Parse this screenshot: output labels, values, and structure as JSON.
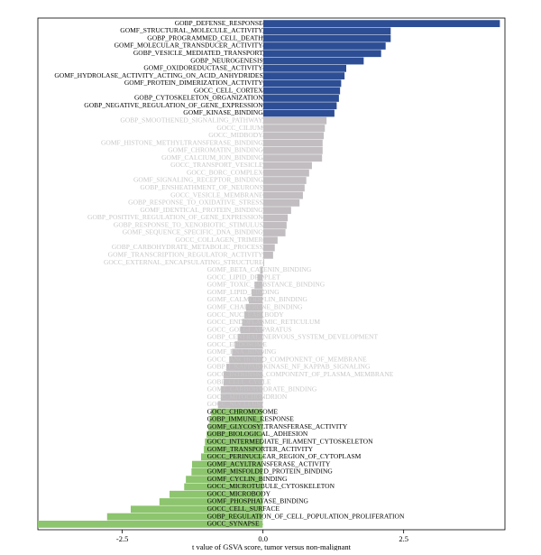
{
  "chart_data": {
    "type": "barh",
    "xlabel": "t value of GSVA score, tumor versus non-malignant",
    "categories": [
      "GOBP_DEFENSE_RESPONSE",
      "GOMF_STRUCTURAL_MOLECULE_ACTIVITY",
      "GOBP_PROGRAMMED_CELL_DEATH",
      "GOMF_MOLECULAR_TRANSDUCER_ACTIVITY",
      "GOBP_VESICLE_MEDIATED_TRANSPORT",
      "GOBP_NEUROGENESIS",
      "GOMF_OXIDOREDUCTASE_ACTIVITY",
      "GOMF_HYDROLASE_ACTIVITY_ACTING_ON_ACID_ANHYDRIDES",
      "GOMF_PROTEIN_DIMERIZATION_ACTIVITY",
      "GOCC_CELL_CORTEX",
      "GOBP_CYTOSKELETON_ORGANIZATION",
      "GOBP_NEGATIVE_REGULATION_OF_GENE_EXPRESSION",
      "GOMF_KINASE_BINDING",
      "GOBP_SMOOTHENED_SIGNALING_PATHWAY",
      "GOCC_CILIUM",
      "GOCC_MIDBODY",
      "GOMF_HISTONE_METHYLTRANSFERASE_BINDING",
      "GOMF_CHROMATIN_BINDING",
      "GOMF_CALCIUM_ION_BINDING",
      "GOCC_TRANSPORT_VESICLE",
      "GOCC_BORC_COMPLEX",
      "GOMF_SIGNALING_RECEPTOR_BINDING",
      "GOBP_ENSHEATHMENT_OF_NEURONS",
      "GOCC_VESICLE_MEMBRANE",
      "GOBP_RESPONSE_TO_OXIDATIVE_STRESS",
      "GOMF_IDENTICAL_PROTEIN_BINDING",
      "GOBP_POSITIVE_REGULATION_OF_GENE_EXPRESSION",
      "GOBP_RESPONSE_TO_XENOBIOTIC_STIMULUS",
      "GOMF_SEQUENCE_SPECIFIC_DNA_BINDING",
      "GOCC_COLLAGEN_TRIMER",
      "GOBP_CARBOHYDRATE_METABOLIC_PROCESS",
      "GOMF_TRANSCRIPTION_REGULATOR_ACTIVITY",
      "GOCC_EXTERNAL_ENCAPSULATING_STRUCTURE",
      "GOMF_BETA_CATENIN_BINDING",
      "GOCC_LIPID_DROPLET",
      "GOMF_TOXIC_SUBSTANCE_BINDING",
      "GOMF_LIPID_BINDING",
      "GOMF_CALMODULIN_BINDING",
      "GOMF_CHAPERONE_BINDING",
      "GOCC_NUCLEAR_BODY",
      "GOCC_ENDOPLASMIC_RETICULUM",
      "GOCC_GOLGI_APPARATUS",
      "GOBP_CENTRAL_NERVOUS_SYSTEM_DEVELOPMENT",
      "GOCC_ENDOSOME",
      "GOMF_RNA_BINDING",
      "GOCC_ANCHORED_COMPONENT_OF_MEMBRANE",
      "GOBP_I_KAPPAB_KINASE_NF_KAPPAB_SIGNALING",
      "GOCC_INTRINSIC_COMPONENT_OF_PLASMA_MEMBRANE",
      "GOBP_CELL_CYCLE",
      "GOMF_CARBOHYDRATE_BINDING",
      "GOCC_MITOCHONDRION",
      "GOCC_NUCLEUS",
      "GOCC_CHROMOSOME",
      "GOBP_IMMUNE_RESPONSE",
      "GOMF_GLYCOSYLTRANSFERASE_ACTIVITY",
      "GOBP_BIOLOGICAL_ADHESION",
      "GOCC_INTERMEDIATE_FILAMENT_CYTOSKELETON",
      "GOMF_TRANSPORTER_ACTIVITY",
      "GOCC_PERINUCLEAR_REGION_OF_CYTOPLASM",
      "GOMF_ACYLTRANSFERASE_ACTIVITY",
      "GOMF_MISFOLDED_PROTEIN_BINDING",
      "GOMF_CYCLIN_BINDING",
      "GOCC_MICROTUBULE_CYTOSKELETON",
      "GOCC_MICROBODY",
      "GOMF_PHOSPHATASE_BINDING",
      "GOCC_CELL_SURFACE",
      "GOBP_REGULATION_OF_CELL_POPULATION_PROLIFERATION",
      "GOCC_SYNAPSE"
    ],
    "values": [
      4.21,
      2.27,
      2.27,
      2.18,
      2.1,
      1.79,
      1.48,
      1.45,
      1.39,
      1.37,
      1.35,
      1.31,
      1.27,
      1.13,
      1.1,
      1.08,
      1.06,
      1.06,
      1.05,
      0.87,
      0.82,
      0.77,
      0.74,
      0.71,
      0.65,
      0.5,
      0.44,
      0.42,
      0.4,
      0.26,
      0.21,
      0.18,
      0.02,
      -0.05,
      -0.1,
      -0.15,
      -0.2,
      -0.25,
      -0.3,
      -0.33,
      -0.37,
      -0.4,
      -0.45,
      -0.5,
      -0.55,
      -0.6,
      -0.65,
      -0.7,
      -0.7,
      -0.75,
      -0.75,
      -0.8,
      -0.92,
      -0.95,
      -0.97,
      -1.0,
      -1.03,
      -1.05,
      -1.1,
      -1.26,
      -1.27,
      -1.37,
      -1.4,
      -1.66,
      -1.84,
      -2.35,
      -2.77,
      -4.0
    ],
    "colors": [
      "#2d4e95",
      "#2d4e95",
      "#2d4e95",
      "#2d4e95",
      "#2d4e95",
      "#2d4e95",
      "#2d4e95",
      "#2d4e95",
      "#2d4e95",
      "#2d4e95",
      "#2d4e95",
      "#2d4e95",
      "#2d4e95",
      "#c1bdc0",
      "#c1bdc0",
      "#c1bdc0",
      "#c1bdc0",
      "#c1bdc0",
      "#c1bdc0",
      "#c1bdc0",
      "#c1bdc0",
      "#c1bdc0",
      "#c1bdc0",
      "#c1bdc0",
      "#c1bdc0",
      "#c1bdc0",
      "#c1bdc0",
      "#c1bdc0",
      "#c1bdc0",
      "#c1bdc0",
      "#c1bdc0",
      "#c1bdc0",
      "#c1bdc0",
      "#c1bdc0",
      "#c1bdc0",
      "#c1bdc0",
      "#c1bdc0",
      "#c1bdc0",
      "#c1bdc0",
      "#c1bdc0",
      "#c1bdc0",
      "#c1bdc0",
      "#c1bdc0",
      "#c1bdc0",
      "#c1bdc0",
      "#c1bdc0",
      "#c1bdc0",
      "#c1bdc0",
      "#c1bdc0",
      "#c1bdc0",
      "#c1bdc0",
      "#c1bdc0",
      "#8dc46e",
      "#8dc46e",
      "#8dc46e",
      "#8dc46e",
      "#8dc46e",
      "#8dc46e",
      "#8dc46e",
      "#8dc46e",
      "#8dc46e",
      "#8dc46e",
      "#8dc46e",
      "#8dc46e",
      "#8dc46e",
      "#8dc46e",
      "#8dc46e",
      "#8dc46e"
    ],
    "xlim": [
      -4.0,
      4.3
    ],
    "xticks": [
      -2.5,
      {
        "value": 0,
        "label": "0.0"
      },
      2.5
    ]
  }
}
